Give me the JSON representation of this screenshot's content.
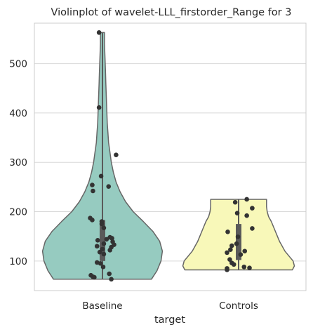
{
  "chart_data": {
    "type": "violin",
    "title": "Violinplot of wavelet-LLL_firstorder_Range for 3",
    "xlabel": "target",
    "ylabel": "",
    "categories": [
      "Baseline",
      "Controls"
    ],
    "ylim": [
      40,
      582
    ],
    "yticks": [
      100,
      200,
      300,
      400,
      500
    ],
    "grid": true,
    "colors": {
      "Baseline": "#96CBC0",
      "Controls": "#F8F8B9",
      "edge": "#666666",
      "points": "#333333",
      "grid": "#d9d9d9",
      "frame": "#cccccc"
    },
    "groups": [
      {
        "name": "Baseline",
        "min": 63,
        "max": 563,
        "q1": 100,
        "median": 132,
        "q3": 183,
        "profile": [
          [
            63,
            0.72
          ],
          [
            80,
            0.8
          ],
          [
            100,
            0.86
          ],
          [
            120,
            0.88
          ],
          [
            140,
            0.84
          ],
          [
            160,
            0.74
          ],
          [
            180,
            0.6
          ],
          [
            200,
            0.45
          ],
          [
            220,
            0.34
          ],
          [
            240,
            0.26
          ],
          [
            260,
            0.2
          ],
          [
            280,
            0.16
          ],
          [
            300,
            0.13
          ],
          [
            320,
            0.11
          ],
          [
            340,
            0.09
          ],
          [
            360,
            0.08
          ],
          [
            380,
            0.07
          ],
          [
            400,
            0.065
          ],
          [
            420,
            0.06
          ],
          [
            440,
            0.055
          ],
          [
            460,
            0.05
          ],
          [
            480,
            0.045
          ],
          [
            500,
            0.04
          ],
          [
            520,
            0.035
          ],
          [
            540,
            0.03
          ],
          [
            563,
            0.03
          ]
        ],
        "points": [
          {
            "y": 563,
            "jitter": -0.05
          },
          {
            "y": 411,
            "jitter": -0.05
          },
          {
            "y": 315,
            "jitter": 0.2
          },
          {
            "y": 272,
            "jitter": -0.02
          },
          {
            "y": 254,
            "jitter": -0.15
          },
          {
            "y": 251,
            "jitter": 0.09
          },
          {
            "y": 242,
            "jitter": -0.14
          },
          {
            "y": 187,
            "jitter": -0.18
          },
          {
            "y": 183,
            "jitter": -0.15
          },
          {
            "y": 180,
            "jitter": -0.01
          },
          {
            "y": 175,
            "jitter": -0.01
          },
          {
            "y": 167,
            "jitter": 0.02
          },
          {
            "y": 148,
            "jitter": 0.11
          },
          {
            "y": 146,
            "jitter": 0.14
          },
          {
            "y": 144,
            "jitter": 0.06
          },
          {
            "y": 142,
            "jitter": -0.07
          },
          {
            "y": 139,
            "jitter": 0.15
          },
          {
            "y": 135,
            "jitter": 0.02
          },
          {
            "y": 133,
            "jitter": 0.17
          },
          {
            "y": 130,
            "jitter": -0.08
          },
          {
            "y": 128,
            "jitter": 0.13
          },
          {
            "y": 124,
            "jitter": 0.0
          },
          {
            "y": 122,
            "jitter": 0.11
          },
          {
            "y": 118,
            "jitter": -0.04
          },
          {
            "y": 114,
            "jitter": 0.02
          },
          {
            "y": 97,
            "jitter": -0.08
          },
          {
            "y": 95,
            "jitter": -0.03
          },
          {
            "y": 88,
            "jitter": 0.01
          },
          {
            "y": 74,
            "jitter": 0.1
          },
          {
            "y": 71,
            "jitter": -0.17
          },
          {
            "y": 68,
            "jitter": -0.14
          },
          {
            "y": 67,
            "jitter": -0.12
          },
          {
            "y": 63,
            "jitter": 0.13
          }
        ]
      },
      {
        "name": "Controls",
        "min": 82,
        "max": 225,
        "q1": 102,
        "median": 126,
        "q3": 175,
        "profile": [
          [
            82,
            0.79
          ],
          [
            90,
            0.82
          ],
          [
            100,
            0.8
          ],
          [
            110,
            0.74
          ],
          [
            120,
            0.68
          ],
          [
            130,
            0.64
          ],
          [
            140,
            0.6
          ],
          [
            150,
            0.57
          ],
          [
            160,
            0.54
          ],
          [
            170,
            0.51
          ],
          [
            180,
            0.48
          ],
          [
            190,
            0.44
          ],
          [
            200,
            0.42
          ],
          [
            210,
            0.41
          ],
          [
            220,
            0.41
          ],
          [
            225,
            0.41
          ]
        ],
        "points": [
          {
            "y": 225,
            "jitter": 0.12
          },
          {
            "y": 219,
            "jitter": -0.05
          },
          {
            "y": 207,
            "jitter": 0.2
          },
          {
            "y": 197,
            "jitter": -0.02
          },
          {
            "y": 192,
            "jitter": 0.12
          },
          {
            "y": 166,
            "jitter": 0.2
          },
          {
            "y": 159,
            "jitter": -0.16
          },
          {
            "y": 149,
            "jitter": -0.01
          },
          {
            "y": 135,
            "jitter": -0.03
          },
          {
            "y": 131,
            "jitter": -0.1
          },
          {
            "y": 123,
            "jitter": -0.12
          },
          {
            "y": 120,
            "jitter": 0.09
          },
          {
            "y": 117,
            "jitter": -0.17
          },
          {
            "y": 113,
            "jitter": 0.03
          },
          {
            "y": 103,
            "jitter": -0.13
          },
          {
            "y": 96,
            "jitter": -0.1
          },
          {
            "y": 93,
            "jitter": -0.07
          },
          {
            "y": 88,
            "jitter": 0.08
          },
          {
            "y": 86,
            "jitter": 0.16
          },
          {
            "y": 85,
            "jitter": -0.17
          },
          {
            "y": 82,
            "jitter": -0.17
          }
        ]
      }
    ]
  }
}
